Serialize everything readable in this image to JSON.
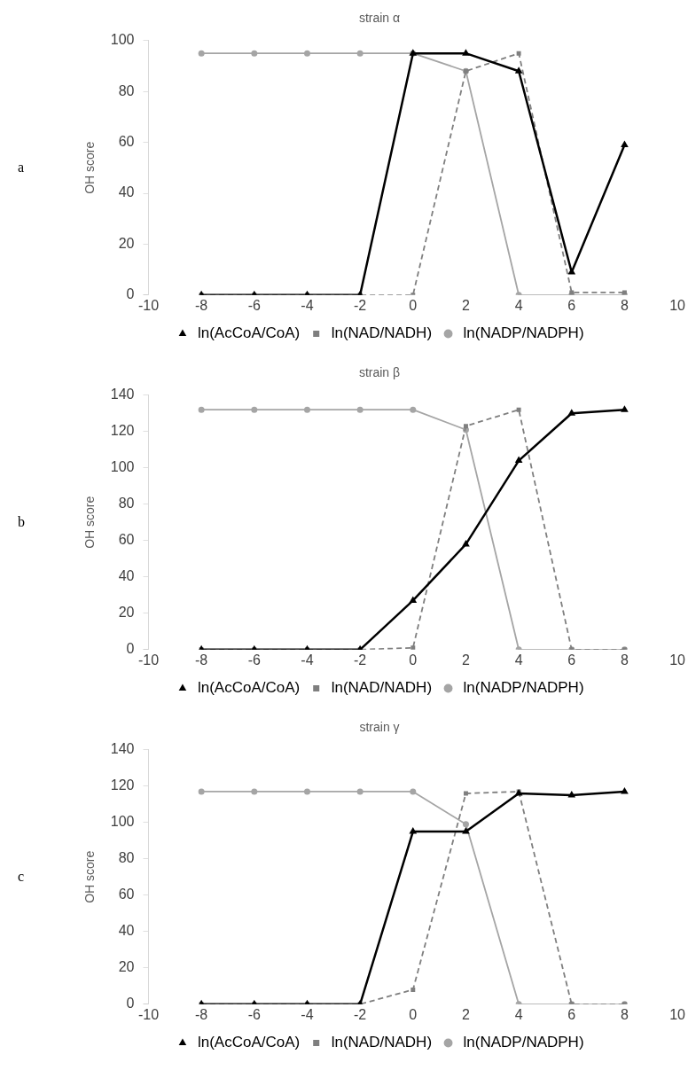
{
  "chart_data": [
    {
      "type": "line",
      "title": "strain α",
      "ylabel": "OH score",
      "annotations": [
        "a"
      ],
      "x": [
        -8,
        -6,
        -4,
        -2,
        0,
        2,
        4,
        6,
        8
      ],
      "xlim": [
        -10,
        10
      ],
      "xticks": [
        -10,
        -8,
        -6,
        -4,
        -2,
        0,
        2,
        4,
        6,
        8,
        10
      ],
      "ylim": [
        0,
        100
      ],
      "yticks": [
        0,
        20,
        40,
        60,
        80,
        100
      ],
      "grid": false,
      "legend": "bottom",
      "series": [
        {
          "name": "ln(AcCoA/CoA)",
          "color": "#000000",
          "marker": "triangle",
          "line_style": "solid",
          "values": [
            0,
            0,
            0,
            0,
            95,
            95,
            88,
            9,
            59
          ]
        },
        {
          "name": "ln(NAD/NADH)",
          "color": "#7f7f7f",
          "marker": "square",
          "line_style": "dashed",
          "values": [
            0,
            0,
            0,
            0,
            0,
            88,
            95,
            1,
            1
          ]
        },
        {
          "name": "ln(NADP/NADPH)",
          "color": "#a5a5a5",
          "marker": "circle",
          "line_style": "solid",
          "values": [
            95,
            95,
            95,
            95,
            95,
            88,
            0,
            0,
            0
          ]
        }
      ]
    },
    {
      "type": "line",
      "title": "strain β",
      "ylabel": "OH score",
      "annotations": [
        "b"
      ],
      "x": [
        -8,
        -6,
        -4,
        -2,
        0,
        2,
        4,
        6,
        8
      ],
      "xlim": [
        -10,
        10
      ],
      "xticks": [
        -10,
        -8,
        -6,
        -4,
        -2,
        0,
        2,
        4,
        6,
        8,
        10
      ],
      "ylim": [
        0,
        140
      ],
      "yticks": [
        0,
        20,
        40,
        60,
        80,
        100,
        120,
        140
      ],
      "grid": false,
      "legend": "bottom",
      "series": [
        {
          "name": "ln(AcCoA/CoA)",
          "color": "#000000",
          "marker": "triangle",
          "line_style": "solid",
          "values": [
            0,
            0,
            0,
            0,
            27,
            58,
            104,
            130,
            132
          ]
        },
        {
          "name": "ln(NAD/NADH)",
          "color": "#7f7f7f",
          "marker": "square",
          "line_style": "dashed",
          "values": [
            0,
            0,
            0,
            0,
            1,
            123,
            132,
            0,
            0
          ]
        },
        {
          "name": "ln(NADP/NADPH)",
          "color": "#a5a5a5",
          "marker": "circle",
          "line_style": "solid",
          "values": [
            132,
            132,
            132,
            132,
            132,
            121,
            0,
            0,
            0
          ]
        }
      ]
    },
    {
      "type": "line",
      "title": "strain γ",
      "ylabel": "OH score",
      "annotations": [
        "c"
      ],
      "x": [
        -8,
        -6,
        -4,
        -2,
        0,
        2,
        4,
        6,
        8
      ],
      "xlim": [
        -10,
        10
      ],
      "xticks": [
        -10,
        -8,
        -6,
        -4,
        -2,
        0,
        2,
        4,
        6,
        8,
        10
      ],
      "ylim": [
        0,
        140
      ],
      "yticks": [
        0,
        20,
        40,
        60,
        80,
        100,
        120,
        140
      ],
      "grid": false,
      "legend": "bottom",
      "series": [
        {
          "name": "ln(AcCoA/CoA)",
          "color": "#000000",
          "marker": "triangle",
          "line_style": "solid",
          "values": [
            0,
            0,
            0,
            0,
            95,
            95,
            116,
            115,
            117
          ]
        },
        {
          "name": "ln(NAD/NADH)",
          "color": "#7f7f7f",
          "marker": "square",
          "line_style": "dashed",
          "values": [
            0,
            0,
            0,
            0,
            8,
            116,
            117,
            0,
            0
          ]
        },
        {
          "name": "ln(NADP/NADPH)",
          "color": "#a5a5a5",
          "marker": "circle",
          "line_style": "solid",
          "values": [
            117,
            117,
            117,
            117,
            117,
            99,
            0,
            0,
            0
          ]
        }
      ]
    }
  ]
}
